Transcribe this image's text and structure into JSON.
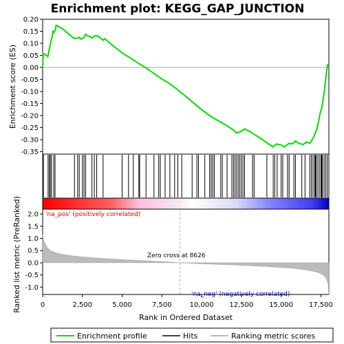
{
  "chart_data": {
    "type": "line",
    "title": "Enrichment plot: KEGG_GAP_JUNCTION",
    "x_range": [
      0,
      18000
    ],
    "x_ticks": [
      0,
      2500,
      5000,
      7500,
      10000,
      12500,
      15000,
      17500
    ],
    "xlabel": "Rank in Ordered Dataset",
    "top_panel": {
      "ylabel": "Enrichment score (ES)",
      "ylim": [
        -0.36,
        0.2
      ],
      "y_ticks": [
        0.2,
        0.15,
        0.1,
        0.05,
        0.0,
        -0.05,
        -0.1,
        -0.15,
        -0.2,
        -0.25,
        -0.3,
        -0.35
      ],
      "series": [
        {
          "name": "Enrichment profile",
          "color": "#00dd00",
          "points": [
            [
              0,
              0.0
            ],
            [
              30,
              0.058
            ],
            [
              200,
              0.052
            ],
            [
              330,
              0.045
            ],
            [
              400,
              0.07
            ],
            [
              470,
              0.092
            ],
            [
              520,
              0.11
            ],
            [
              600,
              0.128
            ],
            [
              650,
              0.15
            ],
            [
              700,
              0.145
            ],
            [
              780,
              0.152
            ],
            [
              850,
              0.175
            ],
            [
              950,
              0.172
            ],
            [
              1300,
              0.158
            ],
            [
              1700,
              0.135
            ],
            [
              2000,
              0.12
            ],
            [
              2200,
              0.122
            ],
            [
              2300,
              0.125
            ],
            [
              2400,
              0.118
            ],
            [
              2500,
              0.12
            ],
            [
              2600,
              0.125
            ],
            [
              2700,
              0.138
            ],
            [
              2800,
              0.132
            ],
            [
              3000,
              0.128
            ],
            [
              3100,
              0.122
            ],
            [
              3300,
              0.132
            ],
            [
              3500,
              0.13
            ],
            [
              3700,
              0.118
            ],
            [
              3800,
              0.113
            ],
            [
              3900,
              0.12
            ],
            [
              4300,
              0.097
            ],
            [
              5000,
              0.06
            ],
            [
              5500,
              0.04
            ],
            [
              6000,
              0.018
            ],
            [
              6500,
              -0.002
            ],
            [
              7000,
              -0.025
            ],
            [
              7500,
              -0.048
            ],
            [
              8000,
              -0.068
            ],
            [
              8500,
              -0.093
            ],
            [
              9000,
              -0.12
            ],
            [
              9500,
              -0.148
            ],
            [
              10000,
              -0.175
            ],
            [
              10500,
              -0.2
            ],
            [
              11000,
              -0.22
            ],
            [
              11500,
              -0.238
            ],
            [
              12000,
              -0.26
            ],
            [
              12200,
              -0.272
            ],
            [
              12500,
              -0.265
            ],
            [
              12700,
              -0.255
            ],
            [
              13000,
              -0.265
            ],
            [
              13300,
              -0.278
            ],
            [
              13600,
              -0.29
            ],
            [
              14000,
              -0.308
            ],
            [
              14300,
              -0.322
            ],
            [
              14500,
              -0.33
            ],
            [
              14700,
              -0.318
            ],
            [
              15000,
              -0.322
            ],
            [
              15200,
              -0.33
            ],
            [
              15500,
              -0.315
            ],
            [
              15700,
              -0.318
            ],
            [
              15900,
              -0.305
            ],
            [
              16100,
              -0.315
            ],
            [
              16400,
              -0.32
            ],
            [
              16600,
              -0.31
            ],
            [
              16800,
              -0.315
            ],
            [
              16950,
              -0.3
            ],
            [
              17050,
              -0.288
            ],
            [
              17150,
              -0.272
            ],
            [
              17250,
              -0.255
            ],
            [
              17350,
              -0.225
            ],
            [
              17450,
              -0.19
            ],
            [
              17550,
              -0.17
            ],
            [
              17650,
              -0.13
            ],
            [
              17750,
              -0.08
            ],
            [
              17850,
              -0.02
            ],
            [
              17920,
              0.01
            ],
            [
              18000,
              0.005
            ]
          ]
        }
      ]
    },
    "hits_panel": {
      "series_name": "Hits",
      "hit_ranks": [
        50,
        340,
        420,
        480,
        560,
        700,
        780,
        2000,
        2200,
        2300,
        2500,
        2600,
        2700,
        3100,
        3250,
        3400,
        3800,
        5000,
        5400,
        5700,
        6050,
        6100,
        6500,
        7000,
        7300,
        7400,
        7700,
        8000,
        8300,
        8500,
        8750,
        9400,
        9700,
        9800,
        10200,
        10500,
        10600,
        10700,
        10800,
        11200,
        11300,
        11600,
        11900,
        12000,
        12100,
        12200,
        12300,
        12400,
        12500,
        12600,
        12700,
        13200,
        13300,
        14100,
        14500,
        14600,
        14750,
        15000,
        15100,
        15400,
        15500,
        15800,
        15900,
        16300,
        16500,
        16800,
        16900,
        17000,
        17100,
        17150,
        17200,
        17300,
        17400,
        17500,
        17550,
        17600,
        17700,
        17800,
        17900
      ],
      "gradient_colors": [
        "#ff0000",
        "#ffffff",
        "#0000ff"
      ]
    },
    "bottom_panel": {
      "ylabel": "Ranked list metric (PreRanked)",
      "ylim": [
        -1.3,
        2.2
      ],
      "y_ticks": [
        2.0,
        1.5,
        1.0,
        0.5,
        0.0,
        -0.5,
        -1.0
      ],
      "series_name": "Ranking metric scores",
      "color": "#bbbbbb",
      "points": [
        [
          0,
          1.15
        ],
        [
          50,
          0.95
        ],
        [
          150,
          0.78
        ],
        [
          300,
          0.62
        ],
        [
          500,
          0.5
        ],
        [
          800,
          0.42
        ],
        [
          1200,
          0.35
        ],
        [
          1800,
          0.29
        ],
        [
          2500,
          0.24
        ],
        [
          3500,
          0.19
        ],
        [
          5000,
          0.13
        ],
        [
          6500,
          0.08
        ],
        [
          8000,
          0.03
        ],
        [
          8626,
          0.0
        ],
        [
          10000,
          -0.04
        ],
        [
          12000,
          -0.09
        ],
        [
          14000,
          -0.15
        ],
        [
          15500,
          -0.21
        ],
        [
          16500,
          -0.28
        ],
        [
          17200,
          -0.37
        ],
        [
          17600,
          -0.48
        ],
        [
          17800,
          -0.6
        ],
        [
          17950,
          -0.85
        ],
        [
          18000,
          -1.3
        ]
      ]
    },
    "annotations": {
      "pos_label": "'na_pos' (positively correlated)",
      "neg_label": "'na_neg' (negatively correlated)",
      "zero_cross": "Zero cross at 8626",
      "zero_cross_rank": 8626,
      "pos_color": "#cc0000",
      "neg_color": "#0000cc"
    },
    "legend": {
      "placement": "bottom",
      "items": [
        {
          "label": "Enrichment profile",
          "color": "#00dd00"
        },
        {
          "label": "Hits",
          "color": "#000000"
        },
        {
          "label": "Ranking metric scores",
          "color": "#bbbbbb"
        }
      ]
    }
  }
}
